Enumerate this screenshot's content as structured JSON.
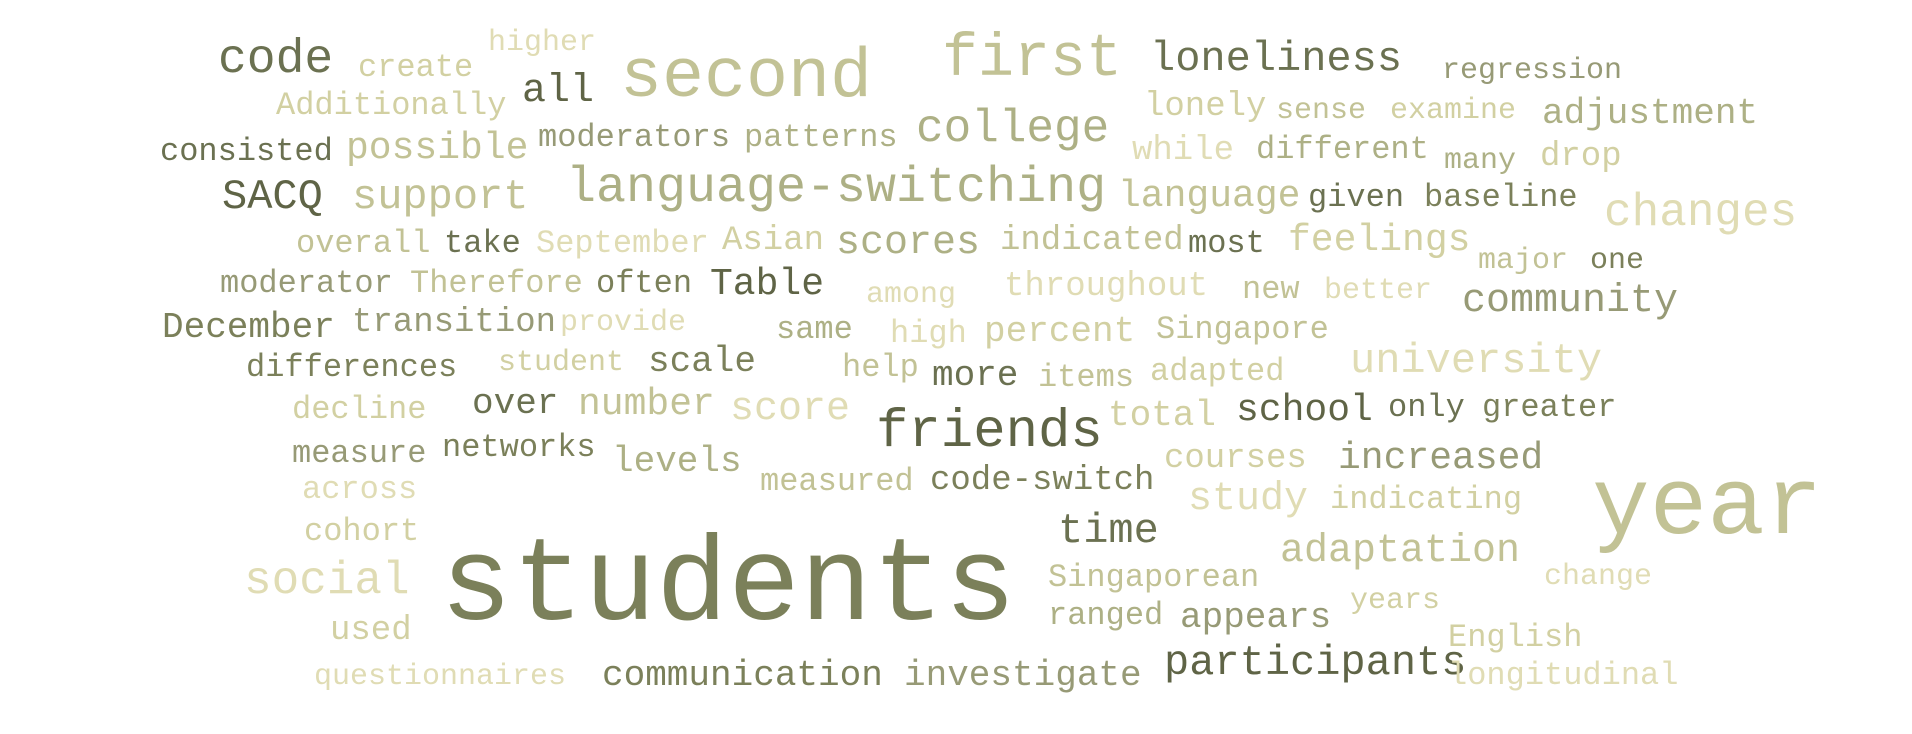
{
  "colors": {
    "c1": "#5f6446",
    "c2": "#6b7151",
    "c3": "#7b805a",
    "c4": "#979a76",
    "c5": "#adb085",
    "c6": "#c2c295",
    "c7": "#d2d0a2",
    "c8": "#e0dcb4"
  },
  "words": [
    {
      "text": "code",
      "c": "c2"
    },
    {
      "text": "create",
      "c": "c7"
    },
    {
      "text": "higher",
      "c": "c8"
    },
    {
      "text": "all",
      "c": "c1"
    },
    {
      "text": "second",
      "c": "c6"
    },
    {
      "text": "first",
      "c": "c6"
    },
    {
      "text": "loneliness",
      "c": "c2"
    },
    {
      "text": "regression",
      "c": "c4"
    },
    {
      "text": "Additionally",
      "c": "c7"
    },
    {
      "text": "lonely",
      "c": "c7"
    },
    {
      "text": "sense",
      "c": "c6"
    },
    {
      "text": "examine",
      "c": "c7"
    },
    {
      "text": "adjustment",
      "c": "c5"
    },
    {
      "text": "consisted",
      "c": "c2"
    },
    {
      "text": "possible",
      "c": "c6"
    },
    {
      "text": "moderators",
      "c": "c4"
    },
    {
      "text": "patterns",
      "c": "c5"
    },
    {
      "text": "college",
      "c": "c5"
    },
    {
      "text": "while",
      "c": "c8"
    },
    {
      "text": "different",
      "c": "c5"
    },
    {
      "text": "many",
      "c": "c5"
    },
    {
      "text": "drop",
      "c": "c7"
    },
    {
      "text": "SACQ",
      "c": "c1"
    },
    {
      "text": "support",
      "c": "c6"
    },
    {
      "text": "language-switching",
      "c": "c5"
    },
    {
      "text": "language",
      "c": "c6"
    },
    {
      "text": "given",
      "c": "c2"
    },
    {
      "text": "baseline",
      "c": "c3"
    },
    {
      "text": "changes",
      "c": "c8"
    },
    {
      "text": "overall",
      "c": "c6"
    },
    {
      "text": "take",
      "c": "c2"
    },
    {
      "text": "September",
      "c": "c8"
    },
    {
      "text": "Asian",
      "c": "c7"
    },
    {
      "text": "scores",
      "c": "c5"
    },
    {
      "text": "indicated",
      "c": "c6"
    },
    {
      "text": "most",
      "c": "c2"
    },
    {
      "text": "feelings",
      "c": "c7"
    },
    {
      "text": "major",
      "c": "c6"
    },
    {
      "text": "one",
      "c": "c3"
    },
    {
      "text": "moderator",
      "c": "c4"
    },
    {
      "text": "Therefore",
      "c": "c6"
    },
    {
      "text": "often",
      "c": "c3"
    },
    {
      "text": "Table",
      "c": "c1"
    },
    {
      "text": "among",
      "c": "c8"
    },
    {
      "text": "throughout",
      "c": "c8"
    },
    {
      "text": "new",
      "c": "c6"
    },
    {
      "text": "better",
      "c": "c8"
    },
    {
      "text": "community",
      "c": "c4"
    },
    {
      "text": "December",
      "c": "c3"
    },
    {
      "text": "transition",
      "c": "c4"
    },
    {
      "text": "provide",
      "c": "c8"
    },
    {
      "text": "same",
      "c": "c5"
    },
    {
      "text": "high",
      "c": "c8"
    },
    {
      "text": "percent",
      "c": "c7"
    },
    {
      "text": "Singapore",
      "c": "c6"
    },
    {
      "text": "university",
      "c": "c8"
    },
    {
      "text": "differences",
      "c": "c3"
    },
    {
      "text": "student",
      "c": "c7"
    },
    {
      "text": "scale",
      "c": "c3"
    },
    {
      "text": "help",
      "c": "c6"
    },
    {
      "text": "more",
      "c": "c2"
    },
    {
      "text": "items",
      "c": "c6"
    },
    {
      "text": "adapted",
      "c": "c7"
    },
    {
      "text": "decline",
      "c": "c7"
    },
    {
      "text": "over",
      "c": "c2"
    },
    {
      "text": "number",
      "c": "c6"
    },
    {
      "text": "score",
      "c": "c8"
    },
    {
      "text": "friends",
      "c": "c1"
    },
    {
      "text": "total",
      "c": "c7"
    },
    {
      "text": "school",
      "c": "c1"
    },
    {
      "text": "only",
      "c": "c2"
    },
    {
      "text": "greater",
      "c": "c3"
    },
    {
      "text": "measure",
      "c": "c4"
    },
    {
      "text": "networks",
      "c": "c3"
    },
    {
      "text": "levels",
      "c": "c5"
    },
    {
      "text": "measured",
      "c": "c6"
    },
    {
      "text": "code-switch",
      "c": "c3"
    },
    {
      "text": "courses",
      "c": "c7"
    },
    {
      "text": "increased",
      "c": "c4"
    },
    {
      "text": "across",
      "c": "c8"
    },
    {
      "text": "study",
      "c": "c8"
    },
    {
      "text": "indicating",
      "c": "c7"
    },
    {
      "text": "year",
      "c": "c6"
    },
    {
      "text": "cohort",
      "c": "c7"
    },
    {
      "text": "time",
      "c": "c2"
    },
    {
      "text": "social",
      "c": "c8"
    },
    {
      "text": "students",
      "c": "c3"
    },
    {
      "text": "Singaporean",
      "c": "c6"
    },
    {
      "text": "adaptation",
      "c": "c6"
    },
    {
      "text": "change",
      "c": "c8"
    },
    {
      "text": "ranged",
      "c": "c5"
    },
    {
      "text": "appears",
      "c": "c4"
    },
    {
      "text": "years",
      "c": "c7"
    },
    {
      "text": "used",
      "c": "c7"
    },
    {
      "text": "English",
      "c": "c7"
    },
    {
      "text": "participants",
      "c": "c1"
    },
    {
      "text": "questionnaires",
      "c": "c8"
    },
    {
      "text": "communication",
      "c": "c3"
    },
    {
      "text": "investigate",
      "c": "c4"
    },
    {
      "text": "longitudinal",
      "c": "c8"
    }
  ]
}
